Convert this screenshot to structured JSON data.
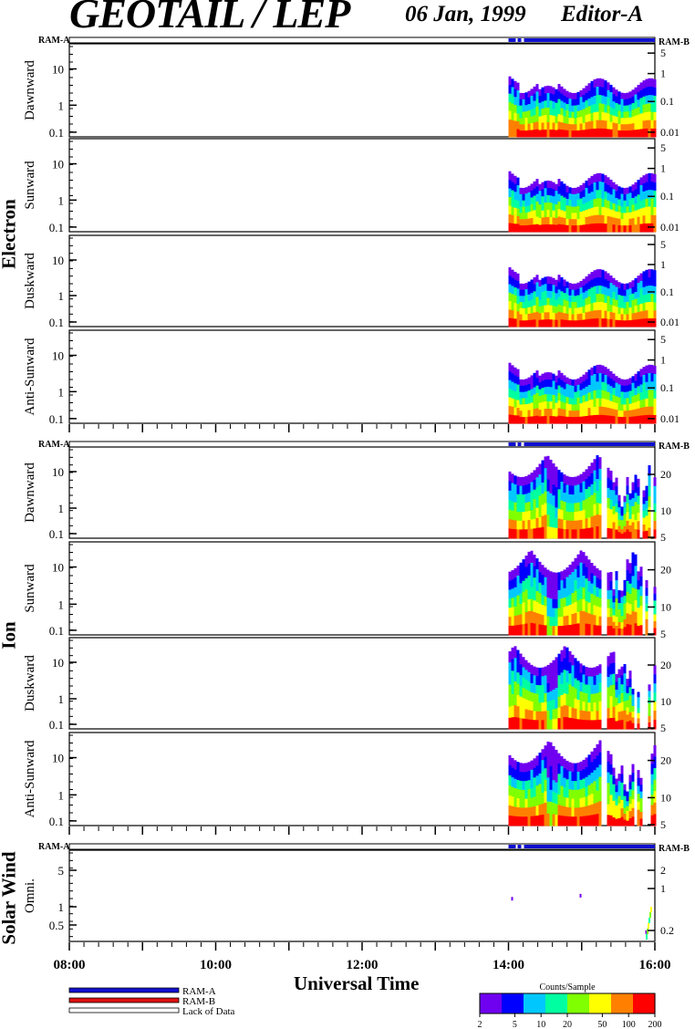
{
  "header": {
    "title": "GEOTAIL / LEP",
    "date": "06 Jan, 1999",
    "editor": "Editor-A"
  },
  "groups": {
    "electron": "Electron",
    "ion": "Ion",
    "solar_wind": "Solar Wind"
  },
  "ram_labels": {
    "a": "RAM-A",
    "b": "RAM-B"
  },
  "x_axis": {
    "title": "Universal Time",
    "ticks": [
      "08:00",
      "10:00",
      "12:00",
      "14:00",
      "16:00"
    ]
  },
  "legend": {
    "items": [
      {
        "label": "RAM-A",
        "color": "#1010d0"
      },
      {
        "label": "RAM-B",
        "color": "#e01010"
      },
      {
        "label": "Lack of Data",
        "color": "#ffffff"
      }
    ],
    "colorbar_title": "Counts/Sample",
    "colorbar_ticks": [
      "2",
      "5",
      "10",
      "20",
      "50",
      "100",
      "200"
    ]
  },
  "colors": {
    "ram_a": "#1010d0",
    "ram_b": "#e01010",
    "spectrogram_scale": [
      "#7000f0",
      "#0000ff",
      "#00c8ff",
      "#00ffa0",
      "#80ff00",
      "#ffff00",
      "#ff8000",
      "#ff0000"
    ]
  },
  "chart_data": [
    {
      "type": "heatmap",
      "group": "Electron",
      "ylabel": "Dawnward",
      "left_ticks": [
        "10",
        "1",
        "0.1"
      ],
      "right_ticks": [
        "5",
        "1",
        "0.1",
        "0.01"
      ],
      "x_range": [
        "08:00",
        "16:00"
      ],
      "data_start": "14:00"
    },
    {
      "type": "heatmap",
      "group": "Electron",
      "ylabel": "Sunward",
      "left_ticks": [
        "10",
        "1",
        "0.1"
      ],
      "right_ticks": [
        "5",
        "1",
        "0.1",
        "0.01"
      ],
      "x_range": [
        "08:00",
        "16:00"
      ],
      "data_start": "14:00"
    },
    {
      "type": "heatmap",
      "group": "Electron",
      "ylabel": "Duskward",
      "left_ticks": [
        "10",
        "1",
        "0.1"
      ],
      "right_ticks": [
        "5",
        "1",
        "0.1",
        "0.01"
      ],
      "x_range": [
        "08:00",
        "16:00"
      ],
      "data_start": "14:00"
    },
    {
      "type": "heatmap",
      "group": "Electron",
      "ylabel": "Anti-Sunward",
      "left_ticks": [
        "10",
        "1",
        "0.1"
      ],
      "right_ticks": [
        "5",
        "1",
        "0.1",
        "0.01"
      ],
      "x_range": [
        "08:00",
        "16:00"
      ],
      "data_start": "14:00"
    },
    {
      "type": "heatmap",
      "group": "Ion",
      "ylabel": "Dawnward",
      "left_ticks": [
        "10",
        "1",
        "0.1"
      ],
      "right_ticks": [
        "20",
        "10",
        "5"
      ],
      "x_range": [
        "08:00",
        "16:00"
      ],
      "data_start": "14:00"
    },
    {
      "type": "heatmap",
      "group": "Ion",
      "ylabel": "Sunward",
      "left_ticks": [
        "10",
        "1",
        "0.1"
      ],
      "right_ticks": [
        "20",
        "10",
        "5"
      ],
      "x_range": [
        "08:00",
        "16:00"
      ],
      "data_start": "14:00"
    },
    {
      "type": "heatmap",
      "group": "Ion",
      "ylabel": "Duskward",
      "left_ticks": [
        "10",
        "1",
        "0.1"
      ],
      "right_ticks": [
        "20",
        "10",
        "5"
      ],
      "x_range": [
        "08:00",
        "16:00"
      ],
      "data_start": "14:00"
    },
    {
      "type": "heatmap",
      "group": "Ion",
      "ylabel": "Anti-Sunward",
      "left_ticks": [
        "10",
        "1",
        "0.1"
      ],
      "right_ticks": [
        "20",
        "10",
        "5"
      ],
      "x_range": [
        "08:00",
        "16:00"
      ],
      "data_start": "14:00"
    },
    {
      "type": "heatmap",
      "group": "Solar Wind",
      "ylabel": "Omni.",
      "left_ticks": [
        "5",
        "1",
        "0.5"
      ],
      "right_ticks": [
        "2",
        "1",
        "0.2"
      ],
      "x_range": [
        "08:00",
        "16:00"
      ],
      "data_start": "14:00"
    }
  ]
}
